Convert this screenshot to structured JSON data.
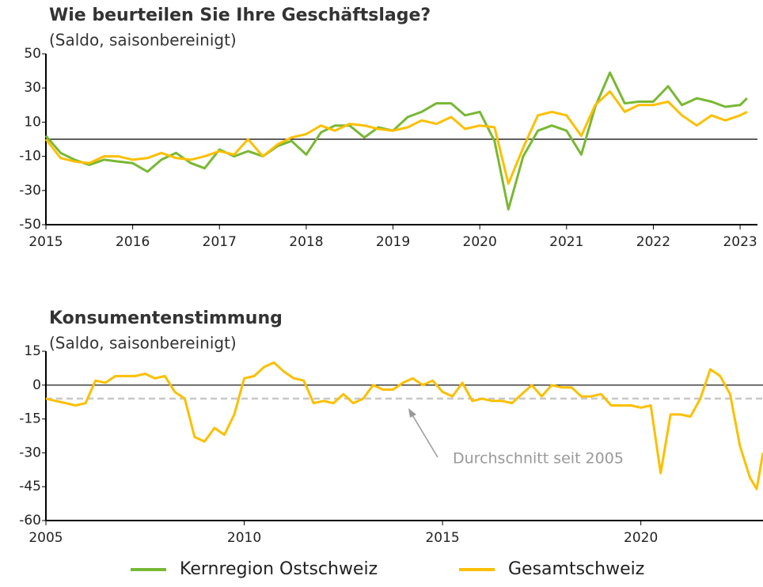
{
  "chart_data": [
    {
      "type": "line",
      "title": "Wie beurteilen Sie Ihre Geschäftslage?",
      "subtitle": "(Saldo, saisonbereinigt)",
      "x": [
        2015,
        2015.17,
        2015.33,
        2015.5,
        2015.67,
        2015.83,
        2016,
        2016.17,
        2016.33,
        2016.5,
        2016.67,
        2016.83,
        2017,
        2017.17,
        2017.33,
        2017.5,
        2017.67,
        2017.83,
        2018,
        2018.17,
        2018.33,
        2018.5,
        2018.67,
        2018.83,
        2019,
        2019.17,
        2019.33,
        2019.5,
        2019.67,
        2019.83,
        2020,
        2020.17,
        2020.33,
        2020.5,
        2020.67,
        2020.83,
        2021,
        2021.17,
        2021.33,
        2021.5,
        2021.67,
        2021.83,
        2022,
        2022.17,
        2022.33,
        2022.5,
        2022.67,
        2022.83,
        2023,
        2023.08
      ],
      "series": [
        {
          "name": "Kernregion Ostschweiz",
          "color": "#78b833",
          "values": [
            2,
            -8,
            -12,
            -15,
            -12,
            -13,
            -14,
            -19,
            -12,
            -8,
            -14,
            -17,
            -6,
            -10,
            -7,
            -10,
            -4,
            -1,
            -9,
            4,
            8,
            8,
            1,
            7,
            5,
            13,
            16,
            21,
            21,
            14,
            16,
            -1,
            -41,
            -10,
            5,
            8,
            5,
            -9,
            19,
            39,
            21,
            22,
            22,
            31,
            20,
            24,
            22,
            19,
            20,
            24
          ]
        },
        {
          "name": "Gesamtschweiz",
          "color": "#fcbf00",
          "values": [
            0,
            -11,
            -13,
            -14,
            -10,
            -10,
            -12,
            -11,
            -8,
            -11,
            -12,
            -10,
            -7,
            -9,
            0,
            -10,
            -3,
            1,
            3,
            8,
            5,
            9,
            8,
            6,
            5,
            7,
            11,
            9,
            13,
            6,
            8,
            7,
            -26,
            -5,
            14,
            16,
            14,
            2,
            20,
            28,
            16,
            20,
            20,
            22,
            14,
            8,
            14,
            11,
            14,
            16
          ]
        }
      ],
      "xlim": [
        2015,
        2023.2
      ],
      "xticks": [
        2015,
        2016,
        2017,
        2018,
        2019,
        2020,
        2021,
        2022,
        2023
      ],
      "ylim": [
        -50,
        50
      ],
      "yticks": [
        -50,
        -30,
        -10,
        10,
        30,
        50
      ],
      "legend": "bottom"
    },
    {
      "type": "line",
      "title": "Konsumentenstimmung",
      "subtitle": "(Saldo, saisonbereinigt)",
      "x": [
        2005,
        2005.25,
        2005.5,
        2005.75,
        2006,
        2006.25,
        2006.5,
        2006.75,
        2007,
        2007.25,
        2007.5,
        2007.75,
        2008,
        2008.25,
        2008.5,
        2008.75,
        2009,
        2009.25,
        2009.5,
        2009.75,
        2010,
        2010.25,
        2010.5,
        2010.75,
        2011,
        2011.25,
        2011.5,
        2011.75,
        2012,
        2012.25,
        2012.5,
        2012.75,
        2013,
        2013.25,
        2013.5,
        2013.75,
        2014,
        2014.25,
        2014.5,
        2014.75,
        2015,
        2015.25,
        2015.5,
        2015.75,
        2016,
        2016.25,
        2016.5,
        2016.75,
        2017,
        2017.25,
        2017.5,
        2017.75,
        2018,
        2018.25,
        2018.5,
        2018.75,
        2019,
        2019.25,
        2019.5,
        2019.75,
        2020,
        2020.25,
        2020.5,
        2020.75,
        2021,
        2021.25,
        2021.5,
        2021.75,
        2022,
        2022.25,
        2022.5,
        2022.75,
        2022.92,
        2023.08
      ],
      "series": [
        {
          "name": "Gesamtschweiz",
          "color": "#fcbf00",
          "values": [
            -6,
            -7,
            -8,
            -9,
            -8,
            2,
            1,
            4,
            4,
            4,
            5,
            3,
            4,
            -3,
            -6,
            -23,
            -25,
            -19,
            -22,
            -13,
            3,
            4,
            8,
            10,
            6,
            3,
            2,
            -8,
            -7,
            -8,
            -4,
            -8,
            -6,
            0,
            -2,
            -2,
            1,
            3,
            0,
            2,
            -3,
            -5,
            1,
            -7,
            -6,
            -7,
            -7,
            -8,
            -4,
            0,
            -5,
            0,
            -1,
            -1,
            -5,
            -5,
            -4,
            -9,
            -9,
            -9,
            -10,
            -9,
            -39,
            -13,
            -13,
            -14,
            -6,
            7,
            4,
            -4,
            -27,
            -41,
            -46,
            -30
          ]
        }
      ],
      "reference_line": {
        "value": -6,
        "label": "Durchschnitt seit 2005",
        "color": "#c8c8c8"
      },
      "xlim": [
        2005,
        2023.08
      ],
      "xticks": [
        2005,
        2010,
        2015,
        2020
      ],
      "ylim": [
        -60,
        15
      ],
      "yticks": [
        -60,
        -45,
        -30,
        -15,
        0,
        15
      ]
    }
  ]
}
